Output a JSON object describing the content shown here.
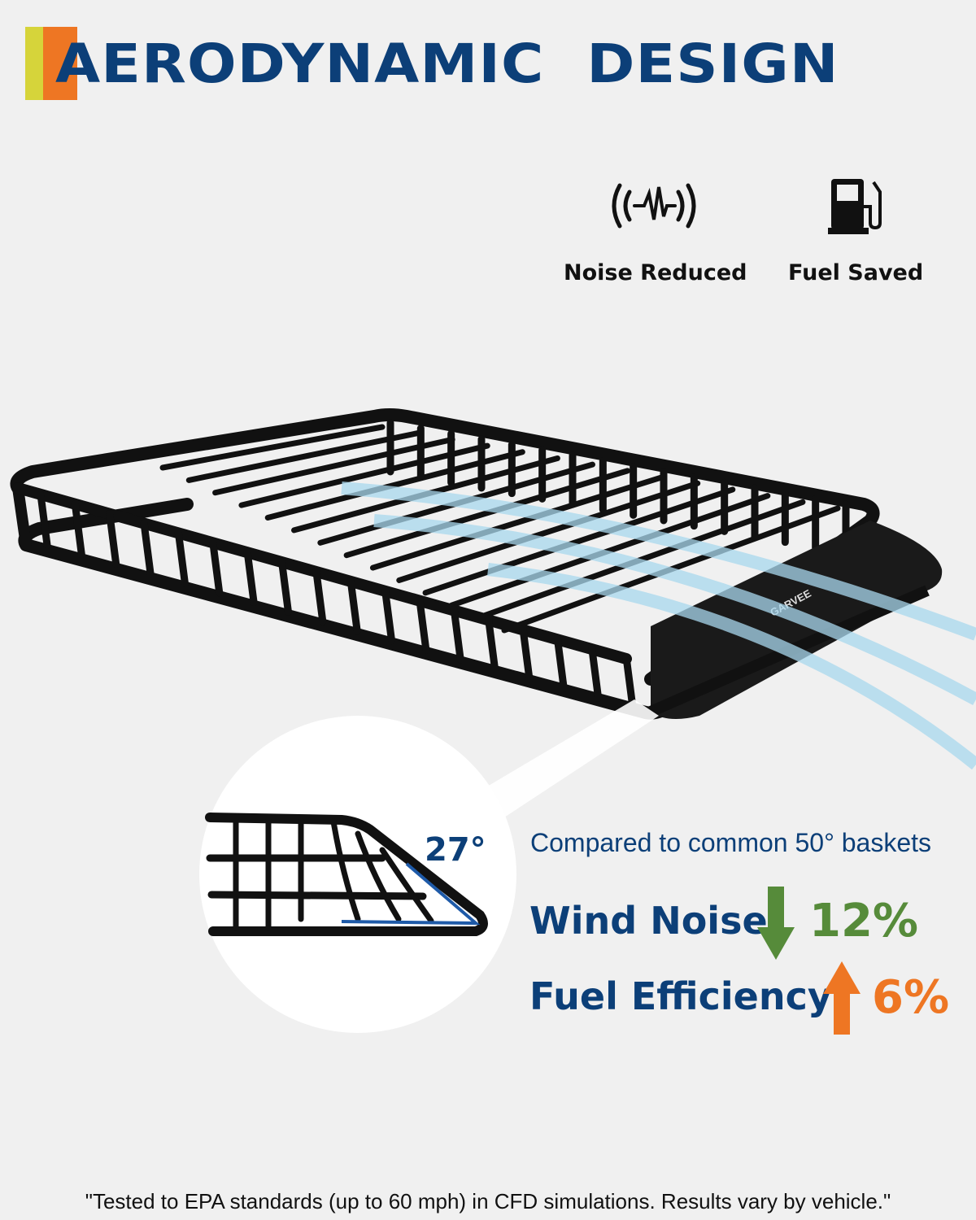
{
  "header": {
    "title": "AERODYNAMIC  DESIGN"
  },
  "features": [
    {
      "icon": "sound-wave-icon",
      "label": "Noise Reduced"
    },
    {
      "icon": "fuel-pump-icon",
      "label": "Fuel Saved"
    }
  ],
  "product": {
    "brand": "GARVEE"
  },
  "detail": {
    "angle": "27°"
  },
  "comparison": {
    "intro": "Compared to common 50° baskets",
    "rows": [
      {
        "label": "Wind Noise",
        "direction": "down",
        "value": "12%",
        "color": "#568b3a"
      },
      {
        "label": "Fuel Efficiency",
        "direction": "up",
        "value": "6%",
        "color": "#ee7623"
      }
    ]
  },
  "footnote": "\"Tested to EPA standards (up to 60 mph) in CFD simulations. Results vary by vehicle.\"",
  "colors": {
    "brand_blue": "#0c3f78",
    "accent_orange": "#ee7623",
    "accent_yellow": "#d6d43a",
    "wind_blue": "#a9d8ee"
  }
}
